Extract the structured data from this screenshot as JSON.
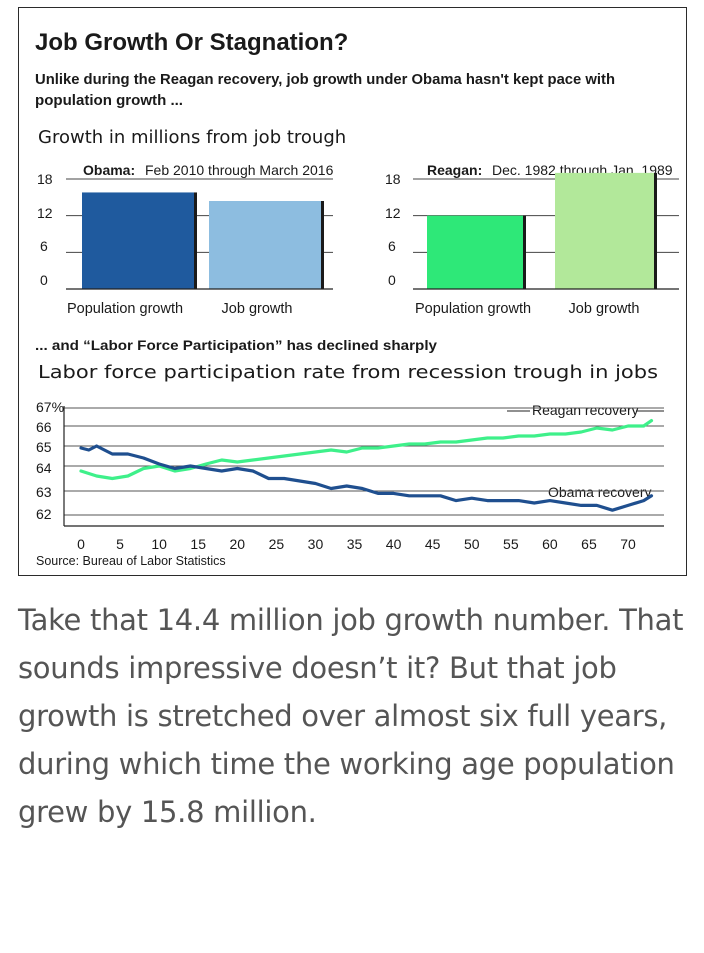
{
  "figure": {
    "title": "Job Growth Or Stagnation?",
    "subtitle_line1": "Unlike during the Reagan recovery, job growth under Obama hasn't kept pace with",
    "subtitle_line2": "population growth ...",
    "bars_unit_label": "Growth in millions from job trough",
    "section2_title": "... and “Labor Force Participation” has declined sharply",
    "section2_subtitle": "Labor force participation rate from recession trough in jobs",
    "source": "Source: Bureau of Labor Statistics"
  },
  "colors": {
    "obama_population": "#1f5a9e",
    "obama_jobs": "#8dbde0",
    "reagan_population": "#2ee878",
    "reagan_jobs": "#b2e89a",
    "reagan_line": "#3ef08a",
    "obama_line": "#1f4f8f"
  },
  "chart_data": [
    {
      "type": "bar",
      "panel_title_bold": "Obama:",
      "panel_title_rest": "Feb 2010 through March 2016",
      "categories": [
        "Population growth",
        "Job growth"
      ],
      "values": [
        15.8,
        14.4
      ],
      "ylim": [
        0,
        18
      ],
      "yticks": [
        18,
        12,
        6,
        0
      ]
    },
    {
      "type": "bar",
      "panel_title_bold": "Reagan:",
      "panel_title_rest": "Dec. 1982 through Jan. 1989",
      "categories": [
        "Population growth",
        "Job growth"
      ],
      "values": [
        12.0,
        19.0
      ],
      "ylim": [
        0,
        18
      ],
      "yticks": [
        18,
        12,
        6,
        0
      ]
    },
    {
      "type": "line",
      "ytick_labels": [
        "67%",
        "66",
        "65",
        "64",
        "63",
        "62"
      ],
      "yticks": [
        67,
        66,
        65,
        64,
        63,
        62
      ],
      "xticks": [
        0,
        5,
        10,
        15,
        20,
        25,
        30,
        35,
        40,
        45,
        50,
        55,
        60,
        65,
        70
      ],
      "xlim": [
        0,
        73
      ],
      "ylim": [
        62,
        67
      ],
      "grid": true,
      "series": [
        {
          "name": "Reagan recovery",
          "x": [
            0,
            2,
            4,
            6,
            8,
            10,
            12,
            14,
            16,
            18,
            20,
            22,
            24,
            26,
            28,
            30,
            32,
            34,
            36,
            38,
            40,
            42,
            44,
            46,
            48,
            50,
            52,
            54,
            56,
            58,
            60,
            62,
            64,
            66,
            68,
            70,
            72,
            73
          ],
          "y": [
            63.8,
            63.6,
            63.5,
            63.6,
            63.9,
            64.0,
            63.8,
            63.9,
            64.1,
            64.3,
            64.2,
            64.3,
            64.4,
            64.5,
            64.6,
            64.7,
            64.8,
            64.7,
            64.9,
            64.9,
            65.0,
            65.1,
            65.1,
            65.2,
            65.2,
            65.3,
            65.4,
            65.4,
            65.5,
            65.5,
            65.6,
            65.6,
            65.7,
            65.9,
            65.8,
            66.0,
            66.0,
            66.3
          ]
        },
        {
          "name": "Obama recovery",
          "x": [
            0,
            1,
            2,
            3,
            4,
            6,
            8,
            10,
            12,
            14,
            16,
            18,
            20,
            22,
            24,
            26,
            28,
            30,
            32,
            34,
            36,
            38,
            40,
            42,
            44,
            46,
            48,
            50,
            52,
            54,
            56,
            58,
            60,
            62,
            64,
            66,
            68,
            70,
            72,
            73
          ],
          "y": [
            64.9,
            64.8,
            65.0,
            64.8,
            64.6,
            64.6,
            64.4,
            64.1,
            63.9,
            64.0,
            63.9,
            63.8,
            63.9,
            63.8,
            63.5,
            63.5,
            63.4,
            63.3,
            63.1,
            63.2,
            63.1,
            62.9,
            62.9,
            62.8,
            62.8,
            62.8,
            62.6,
            62.7,
            62.6,
            62.6,
            62.6,
            62.5,
            62.6,
            62.5,
            62.4,
            62.4,
            62.2,
            62.4,
            62.6,
            62.8
          ]
        }
      ]
    }
  ],
  "caption": "Take that 14.4 million job growth number. That sounds impressive doesn’t it? But that job growth is stretched over almost six full years, during which time the working age population grew by 15.8 million."
}
